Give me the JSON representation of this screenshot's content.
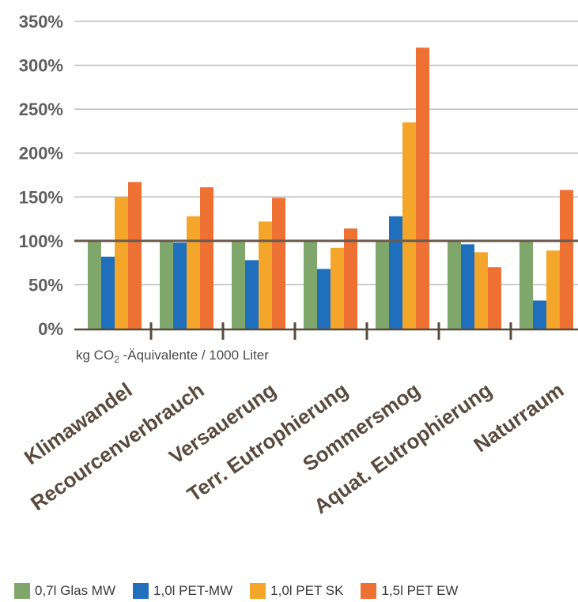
{
  "chart_data": {
    "type": "bar",
    "categories": [
      "Klimawandel",
      "Recourcenverbrauch",
      "Versauerung",
      "Terr. Eutrophierung",
      "Sommersmog",
      "Aquat. Eutrophierung",
      "Naturraum"
    ],
    "series": [
      {
        "name": "0,7l Glas MW",
        "color": "#7fa76b",
        "values": [
          100,
          100,
          100,
          100,
          100,
          100,
          100
        ]
      },
      {
        "name": "1,0l PET-MW",
        "color": "#1f6fbd",
        "values": [
          82,
          98,
          78,
          68,
          128,
          96,
          32
        ]
      },
      {
        "name": "1,0l PET SK",
        "color": "#f4a62a",
        "values": [
          150,
          128,
          122,
          92,
          235,
          87,
          89
        ]
      },
      {
        "name": "1,5l PET EW",
        "color": "#ee7033",
        "values": [
          167,
          161,
          149,
          114,
          320,
          70,
          158
        ]
      }
    ],
    "yticks": [
      "0%",
      "50%",
      "100%",
      "150%",
      "200%",
      "250%",
      "300%",
      "350%"
    ],
    "ytick_values": [
      0,
      50,
      100,
      150,
      200,
      250,
      300,
      350
    ],
    "ylim": [
      0,
      350
    ],
    "reference_line": 100,
    "grid": true,
    "subtitle_parts": {
      "pre": "kg CO",
      "sub": "2",
      "post": " -Äquivalente / 1000 Liter"
    },
    "legend_position": "bottom",
    "colors": {
      "grid": "#bdbdbd",
      "reference": "#6b5a4c",
      "axis": "#5a4a3e"
    }
  }
}
